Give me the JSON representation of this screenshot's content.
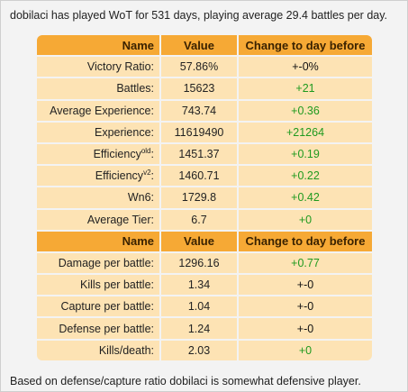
{
  "intro_text": "dobilaci has played WoT for 531 days, playing average 29.4 battles per day.",
  "outro_text": "Based on defense/capture ratio dobilaci is somewhat defensive player.",
  "headers": {
    "name": "Name",
    "value": "Value",
    "change": "Change to day before"
  },
  "section1": [
    {
      "name": "Victory Ratio:",
      "value": "57.86%",
      "change": "+-0%",
      "tone": "neu"
    },
    {
      "name": "Battles:",
      "value": "15623",
      "change": "+21",
      "tone": "pos"
    },
    {
      "name": "Average Experience:",
      "value": "743.74",
      "change": "+0.36",
      "tone": "pos"
    },
    {
      "name": "Experience:",
      "value": "11619490",
      "change": "+21264",
      "tone": "pos"
    },
    {
      "name": "Efficiency",
      "sup": "old",
      "suffix": ":",
      "value": "1451.37",
      "change": "+0.19",
      "tone": "pos"
    },
    {
      "name": "Efficiency",
      "sup": "v2",
      "suffix": ":",
      "value": "1460.71",
      "change": "+0.22",
      "tone": "pos"
    },
    {
      "name": "Wn6:",
      "value": "1729.8",
      "change": "+0.42",
      "tone": "pos"
    },
    {
      "name": "Average Tier:",
      "value": "6.7",
      "change": "+0",
      "tone": "pos"
    }
  ],
  "section2": [
    {
      "name": "Damage per battle:",
      "value": "1296.16",
      "change": "+0.77",
      "tone": "pos"
    },
    {
      "name": "Kills per battle:",
      "value": "1.34",
      "change": "+-0",
      "tone": "neu"
    },
    {
      "name": "Capture per battle:",
      "value": "1.04",
      "change": "+-0",
      "tone": "neu"
    },
    {
      "name": "Defense per battle:",
      "value": "1.24",
      "change": "+-0",
      "tone": "neu"
    },
    {
      "name": "Kills/death:",
      "value": "2.03",
      "change": "+0",
      "tone": "pos"
    }
  ],
  "colors": {
    "header_bg": "#f6a935",
    "cell_bg": "#fde3b4",
    "positive": "#1f9a1f"
  }
}
